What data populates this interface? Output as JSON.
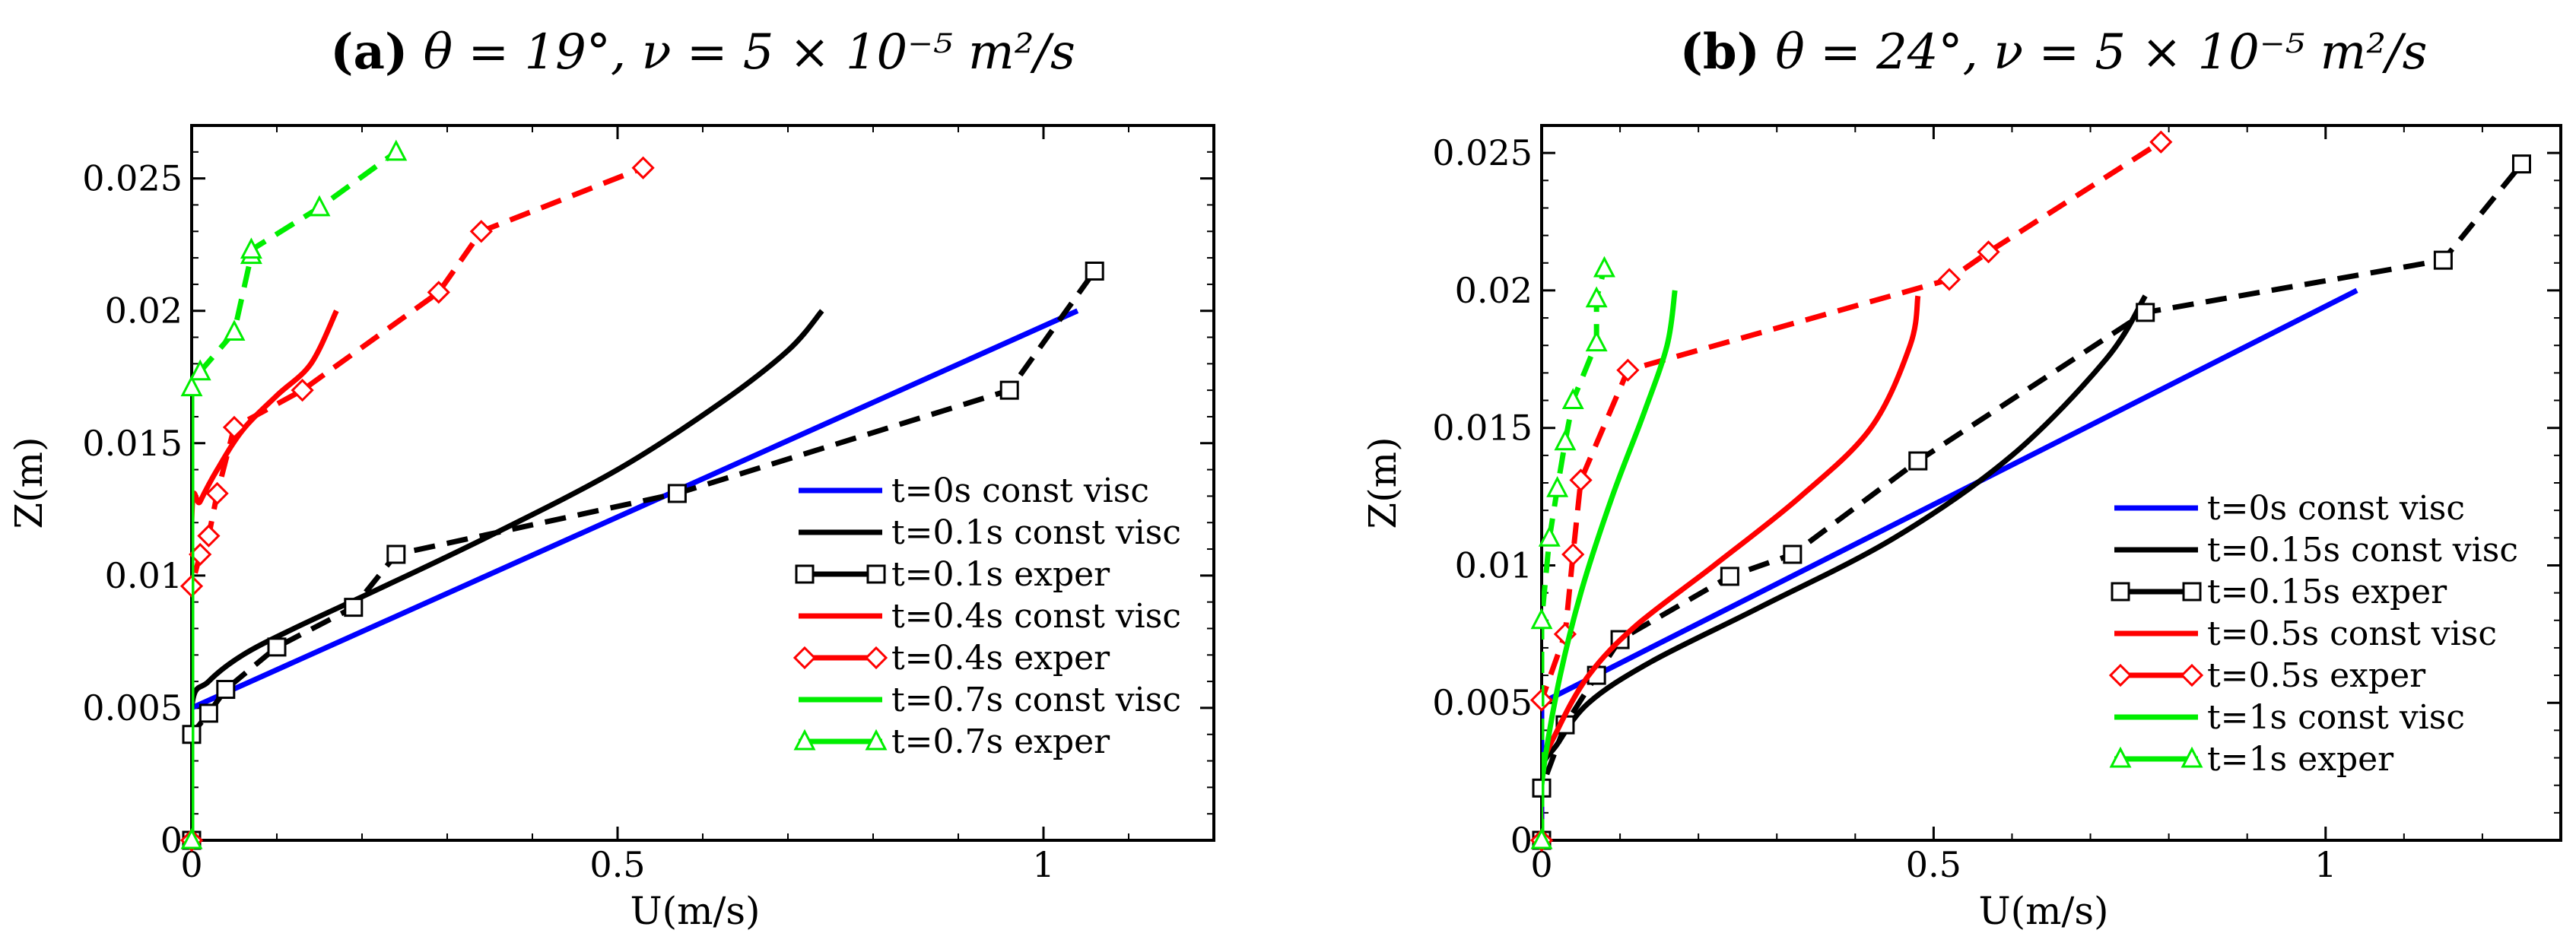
{
  "chart_data": [
    {
      "type": "line",
      "title": "(a) θ = 19°, ν = 5 × 10⁻⁵ m²/s",
      "title_parts": {
        "letter": "(a)",
        "text": "θ = 19°, ν = 5 × 10⁻⁵ m²/s"
      },
      "xlabel": "U(m/s)",
      "ylabel": "Z(m)",
      "xlim": [
        0,
        1.2
      ],
      "ylim": [
        0,
        0.027
      ],
      "xticks": [
        0,
        0.5,
        1
      ],
      "xtick_labels": [
        "0",
        "0.5",
        "1"
      ],
      "yticks": [
        0,
        0.005,
        0.01,
        0.015,
        0.02,
        0.025
      ],
      "ytick_labels": [
        "0",
        "0.005",
        "0.01",
        "0.015",
        "0.02",
        "0.025"
      ],
      "legend_position": "lower-right",
      "series": [
        {
          "name": "t=0s const visc",
          "color": "#0000ff",
          "style": "solid",
          "marker": "none",
          "x": [
            0,
            0,
            1.04
          ],
          "y": [
            0,
            0.005,
            0.02
          ]
        },
        {
          "name": "t=0.1s const visc",
          "color": "#000000",
          "style": "solid",
          "marker": "none",
          "x": [
            0,
            0.0,
            0.02,
            0.06,
            0.12,
            0.22,
            0.35,
            0.5,
            0.62,
            0.7,
            0.74
          ],
          "y": [
            0,
            0.005,
            0.006,
            0.007,
            0.008,
            0.0095,
            0.0115,
            0.014,
            0.0165,
            0.0185,
            0.02
          ]
        },
        {
          "name": "t=0.1s exper",
          "color": "#000000",
          "style": "dashed",
          "marker": "square",
          "x": [
            0,
            0.0,
            0.02,
            0.04,
            0.1,
            0.19,
            0.24,
            0.57,
            0.96,
            1.06
          ],
          "y": [
            0,
            0.004,
            0.0048,
            0.0057,
            0.0073,
            0.0088,
            0.0108,
            0.0131,
            0.017,
            0.0215
          ]
        },
        {
          "name": "t=0.4s const visc",
          "color": "#ff0000",
          "style": "solid",
          "marker": "none",
          "x": [
            0,
            0.0,
            0.01,
            0.03,
            0.06,
            0.1,
            0.14,
            0.17
          ],
          "y": [
            0,
            0.012,
            0.0128,
            0.014,
            0.0155,
            0.0168,
            0.018,
            0.02
          ]
        },
        {
          "name": "t=0.4s exper",
          "color": "#ff0000",
          "style": "dashed",
          "marker": "diamond",
          "x": [
            0,
            0.0,
            0.01,
            0.02,
            0.03,
            0.05,
            0.13,
            0.29,
            0.34,
            0.53
          ],
          "y": [
            0,
            0.0096,
            0.0108,
            0.0115,
            0.0131,
            0.0156,
            0.017,
            0.0207,
            0.023,
            0.0254
          ]
        },
        {
          "name": "t=0.7s const visc",
          "color": "#00ee00",
          "style": "solid",
          "marker": "none",
          "x": [
            0,
            0
          ],
          "y": [
            0,
            0.017
          ]
        },
        {
          "name": "t=0.7s exper",
          "color": "#00ee00",
          "style": "dashed",
          "marker": "triangle",
          "x": [
            0,
            0.0,
            0.01,
            0.05,
            0.07,
            0.07,
            0.15,
            0.24
          ],
          "y": [
            0,
            0.0171,
            0.0177,
            0.0192,
            0.0221,
            0.0223,
            0.0239,
            0.026
          ]
        }
      ]
    },
    {
      "type": "line",
      "title": "(b) θ = 24°, ν = 5 × 10⁻⁵ m²/s",
      "title_parts": {
        "letter": "(b)",
        "text": "θ = 24°, ν = 5 × 10⁻⁵ m²/s"
      },
      "xlabel": "U(m/s)",
      "ylabel": "Z(m)",
      "xlim": [
        0,
        1.3
      ],
      "ylim": [
        0,
        0.026
      ],
      "xticks": [
        0,
        0.5,
        1
      ],
      "xtick_labels": [
        "0",
        "0.5",
        "1"
      ],
      "yticks": [
        0,
        0.005,
        0.01,
        0.015,
        0.02,
        0.025
      ],
      "ytick_labels": [
        "0",
        "0.005",
        "0.01",
        "0.015",
        "0.02",
        "0.025"
      ],
      "legend_position": "lower-right",
      "series": [
        {
          "name": "t=0s const visc",
          "color": "#0000ff",
          "style": "solid",
          "marker": "none",
          "x": [
            0,
            0,
            1.04
          ],
          "y": [
            0,
            0.005,
            0.02
          ]
        },
        {
          "name": "t=0.15s const visc",
          "color": "#000000",
          "style": "solid",
          "marker": "none",
          "x": [
            0,
            0.0,
            0.02,
            0.06,
            0.14,
            0.28,
            0.45,
            0.6,
            0.72,
            0.77
          ],
          "y": [
            0,
            0.0025,
            0.0035,
            0.005,
            0.0065,
            0.0085,
            0.011,
            0.014,
            0.0175,
            0.0198
          ]
        },
        {
          "name": "t=0.15s exper",
          "color": "#000000",
          "style": "dashed",
          "marker": "square",
          "x": [
            0,
            0.0,
            0.03,
            0.07,
            0.1,
            0.24,
            0.32,
            0.48,
            0.77,
            1.15,
            1.25
          ],
          "y": [
            0,
            0.0019,
            0.0042,
            0.006,
            0.0073,
            0.0096,
            0.0104,
            0.0138,
            0.0192,
            0.0211,
            0.0246
          ]
        },
        {
          "name": "t=0.5s const visc",
          "color": "#ff0000",
          "style": "solid",
          "marker": "none",
          "x": [
            0,
            0.0,
            0.02,
            0.06,
            0.12,
            0.22,
            0.33,
            0.42,
            0.47,
            0.48
          ],
          "y": [
            0,
            0.0025,
            0.004,
            0.006,
            0.0078,
            0.01,
            0.0125,
            0.015,
            0.018,
            0.0198
          ]
        },
        {
          "name": "t=0.5s exper",
          "color": "#ff0000",
          "style": "dashed",
          "marker": "diamond",
          "x": [
            0,
            0.0,
            0.03,
            0.04,
            0.05,
            0.11,
            0.52,
            0.57,
            0.79
          ],
          "y": [
            0,
            0.0051,
            0.0075,
            0.0104,
            0.0131,
            0.0171,
            0.0204,
            0.0214,
            0.0254
          ]
        },
        {
          "name": "t=1s const visc",
          "color": "#00ee00",
          "style": "solid",
          "marker": "none",
          "x": [
            0,
            0.0,
            0.02,
            0.05,
            0.09,
            0.13,
            0.16,
            0.17
          ],
          "y": [
            0,
            0.002,
            0.0055,
            0.009,
            0.0125,
            0.0155,
            0.018,
            0.02
          ]
        },
        {
          "name": "t=1s exper",
          "color": "#00ee00",
          "style": "dashed",
          "marker": "triangle",
          "x": [
            0,
            0.0,
            0.01,
            0.02,
            0.03,
            0.04,
            0.07,
            0.07,
            0.08
          ],
          "y": [
            0,
            0.008,
            0.011,
            0.0128,
            0.0145,
            0.016,
            0.0181,
            0.0197,
            0.0208
          ]
        }
      ]
    }
  ]
}
